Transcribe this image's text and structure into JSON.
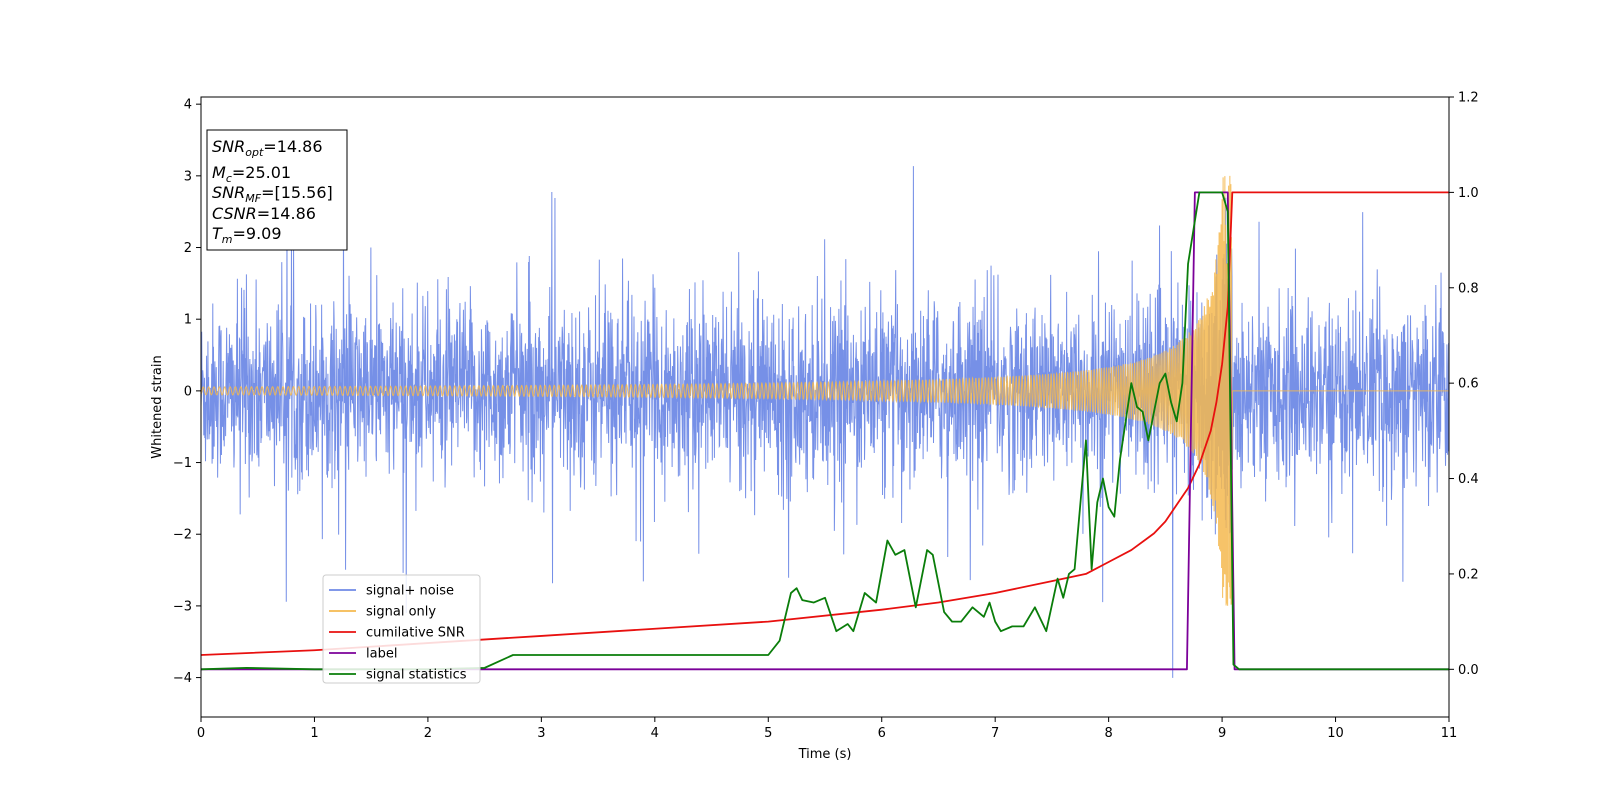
{
  "chart_data": {
    "type": "line",
    "xlabel": "Time (s)",
    "ylabel": "Whitened strain",
    "xlim": [
      0,
      11
    ],
    "ylim_left": [
      -4.55,
      4.1
    ],
    "ylim_right": [
      -0.1,
      1.2
    ],
    "x_ticks": [
      "0",
      "1",
      "2",
      "3",
      "4",
      "5",
      "6",
      "7",
      "8",
      "9",
      "10",
      "11"
    ],
    "y_ticks_left": [
      "4",
      "3",
      "2",
      "1",
      "0",
      "−1",
      "−2",
      "−3",
      "−4"
    ],
    "y_ticks_right": [
      "1.2",
      "1.0",
      "0.8",
      "0.6",
      "0.4",
      "0.2",
      "0.0"
    ],
    "grid": false,
    "legend_placement": "lower-left",
    "annotation": {
      "snr_opt": {
        "base": "SNR",
        "sub": "opt",
        "value": "=14.86"
      },
      "mc": {
        "base": "M",
        "sub": "c",
        "value": "=25.01"
      },
      "snr_mf": {
        "base": "SNR",
        "sub": "MF",
        "value": "=[15.56]"
      },
      "csnr": {
        "base": "CSNR",
        "value": "=14.86"
      },
      "tm": {
        "base": "T",
        "sub": "m",
        "value": "=9.09"
      }
    },
    "series": [
      {
        "name": "signal+ noise",
        "color": "#6f8ae6",
        "axis": "left",
        "description": "noise band approx amplitude ±1.3 with spikes up to ±3.7"
      },
      {
        "name": "signal only",
        "color": "#f5b94f",
        "axis": "left",
        "description": "chirp rising from 0 amplitude to ~3 at t≈9.05 then 0"
      },
      {
        "name": "cumilative SNR",
        "color": "#e8100f",
        "axis": "right",
        "x": [
          0,
          1,
          2,
          3,
          4,
          5,
          6,
          6.5,
          7,
          7.5,
          7.8,
          8,
          8.2,
          8.4,
          8.5,
          8.6,
          8.7,
          8.8,
          8.9,
          8.95,
          9.0,
          9.05,
          9.09,
          11
        ],
        "y": [
          0.03,
          0.04,
          0.055,
          0.07,
          0.085,
          0.1,
          0.125,
          0.14,
          0.16,
          0.185,
          0.2,
          0.225,
          0.25,
          0.285,
          0.31,
          0.345,
          0.38,
          0.43,
          0.5,
          0.56,
          0.64,
          0.76,
          1.0,
          1.0
        ]
      },
      {
        "name": "label",
        "color": "#7b0099",
        "axis": "right",
        "x": [
          0,
          8.69,
          8.76,
          9.05,
          9.11,
          11
        ],
        "y": [
          0,
          0,
          1.0,
          1.0,
          0,
          0
        ]
      },
      {
        "name": "signal statistics",
        "color": "#0a7d0a",
        "axis": "right",
        "x": [
          0,
          0.4,
          1,
          2,
          2.5,
          2.75,
          3,
          3.5,
          4,
          4.5,
          4.75,
          5,
          5.1,
          5.2,
          5.25,
          5.3,
          5.4,
          5.5,
          5.6,
          5.7,
          5.75,
          5.85,
          5.95,
          6.05,
          6.12,
          6.2,
          6.3,
          6.4,
          6.45,
          6.55,
          6.62,
          6.7,
          6.8,
          6.9,
          6.95,
          7.0,
          7.05,
          7.15,
          7.25,
          7.35,
          7.45,
          7.55,
          7.6,
          7.65,
          7.7,
          7.8,
          7.85,
          7.9,
          7.95,
          8.0,
          8.05,
          8.1,
          8.2,
          8.25,
          8.3,
          8.35,
          8.45,
          8.5,
          8.55,
          8.6,
          8.65,
          8.7,
          8.8,
          8.9,
          9.0,
          9.05,
          9.1,
          9.15,
          9.3,
          11
        ],
        "y": [
          0,
          0.003,
          0,
          0,
          0.003,
          0.03,
          0.03,
          0.03,
          0.03,
          0.03,
          0.03,
          0.03,
          0.06,
          0.16,
          0.17,
          0.145,
          0.14,
          0.15,
          0.08,
          0.095,
          0.08,
          0.16,
          0.14,
          0.27,
          0.24,
          0.25,
          0.13,
          0.25,
          0.24,
          0.12,
          0.1,
          0.1,
          0.13,
          0.11,
          0.14,
          0.1,
          0.08,
          0.09,
          0.09,
          0.13,
          0.08,
          0.19,
          0.15,
          0.2,
          0.21,
          0.48,
          0.21,
          0.35,
          0.4,
          0.34,
          0.32,
          0.44,
          0.6,
          0.55,
          0.54,
          0.48,
          0.6,
          0.62,
          0.56,
          0.52,
          0.6,
          0.85,
          1.0,
          1.0,
          1.0,
          0.96,
          0.01,
          0.0,
          0.0,
          0.0
        ]
      }
    ]
  }
}
